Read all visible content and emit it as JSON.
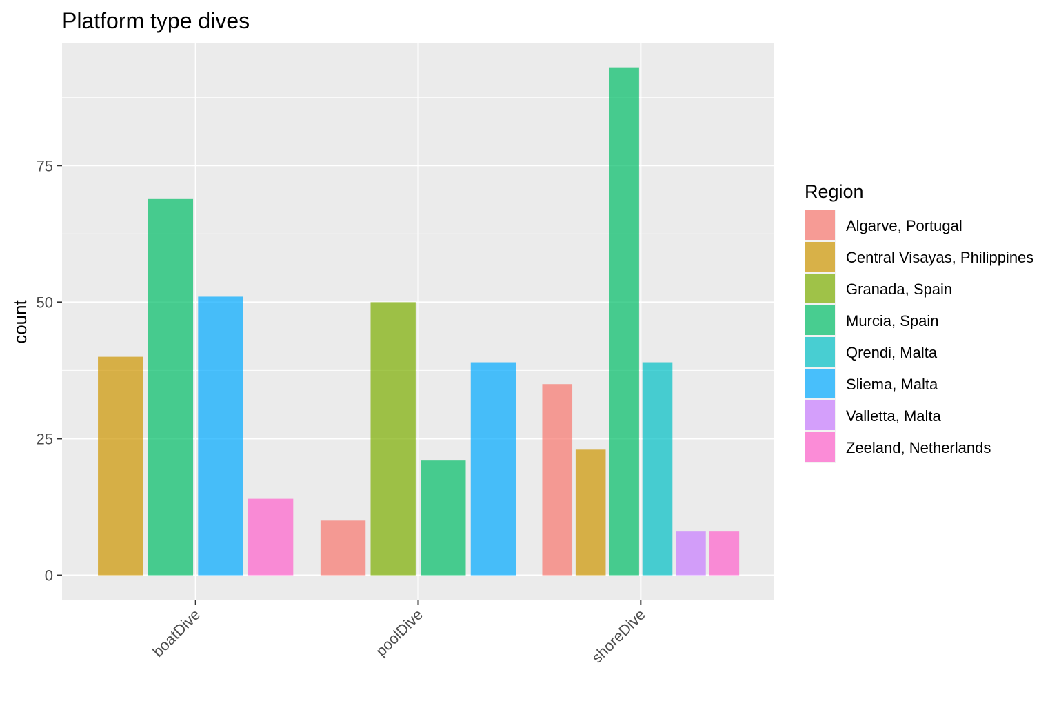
{
  "chart_data": {
    "type": "bar",
    "title": "Platform type dives",
    "xlabel": "",
    "ylabel": "count",
    "categories": [
      "boatDive",
      "poolDive",
      "shoreDive"
    ],
    "ylim": [
      -4.6,
      97.5
    ],
    "yticks": [
      0,
      25,
      50,
      75
    ],
    "grid": true,
    "legend": {
      "title": "Region",
      "placement": "right",
      "entries": [
        {
          "label": "Algarve, Portugal",
          "color": "#F8766D"
        },
        {
          "label": "Central Visayas, Philippines",
          "color": "#CD9600"
        },
        {
          "label": "Granada, Spain",
          "color": "#7CAE00"
        },
        {
          "label": "Murcia, Spain",
          "color": "#00BE67"
        },
        {
          "label": "Qrendi, Malta",
          "color": "#00BFC4"
        },
        {
          "label": "Sliema, Malta",
          "color": "#00A9FF"
        },
        {
          "label": "Valletta, Malta",
          "color": "#C77CFF"
        },
        {
          "label": "Zeeland, Netherlands",
          "color": "#FF61CC"
        }
      ]
    },
    "series": [
      {
        "name": "Algarve, Portugal",
        "values": [
          null,
          10,
          35
        ]
      },
      {
        "name": "Central Visayas, Philippines",
        "values": [
          40,
          null,
          23
        ]
      },
      {
        "name": "Granada, Spain",
        "values": [
          null,
          50,
          null
        ]
      },
      {
        "name": "Murcia, Spain",
        "values": [
          69,
          21,
          93
        ]
      },
      {
        "name": "Qrendi, Malta",
        "values": [
          null,
          null,
          39
        ]
      },
      {
        "name": "Sliema, Malta",
        "values": [
          51,
          39,
          null
        ]
      },
      {
        "name": "Valletta, Malta",
        "values": [
          null,
          null,
          8
        ]
      },
      {
        "name": "Zeeland, Netherlands",
        "values": [
          14,
          null,
          8
        ]
      }
    ],
    "bar_opacity": 0.7,
    "panel_color": "#EBEBEB",
    "gridline_color": "#FFFFFF"
  }
}
